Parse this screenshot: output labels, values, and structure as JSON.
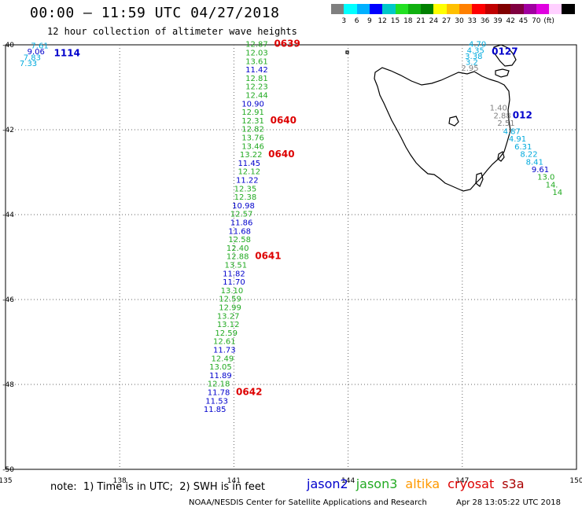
{
  "header": {
    "title": "00:00 – 11:59 UTC 04/27/2018",
    "subtitle": "12 hour collection of altimeter wave heights"
  },
  "colorbar": {
    "colors": [
      "#7f7f7f",
      "#00ffff",
      "#00b0ff",
      "#0000ff",
      "#00c8c8",
      "#22e022",
      "#10b010",
      "#008000",
      "#ffff00",
      "#ffc000",
      "#ff8000",
      "#ff0000",
      "#c00000",
      "#800000",
      "#800040",
      "#a000a0",
      "#e000e0",
      "#ffd0ff",
      "#000000"
    ],
    "ticks": [
      "3",
      "6",
      "9",
      "12",
      "15",
      "18",
      "21",
      "24",
      "27",
      "30",
      "33",
      "36",
      "39",
      "42",
      "45",
      "70",
      "(ft)"
    ]
  },
  "map": {
    "lon_range": [
      135,
      150
    ],
    "lat_range": [
      -50,
      -40
    ],
    "lon_ticks": [
      "135",
      "138",
      "141",
      "144",
      "147",
      "150"
    ],
    "lat_ticks": [
      "-40",
      "-42",
      "-44",
      "-46",
      "-48",
      "-50"
    ],
    "grid": "dotted"
  },
  "colors": {
    "jason2": "#0000cc",
    "jason3": "#22aa22",
    "altika": "#ff9900",
    "cryosat": "#dd0000",
    "s3a": "#aa0000",
    "grey": "#7f7f7f",
    "cyan": "#00aadd",
    "coast": "#000000"
  },
  "tracks": [
    {
      "label": "1114",
      "points": [
        {
          "lon": 135.9,
          "lat": -40.08,
          "v": "7.61",
          "c": "cyan"
        },
        {
          "lon": 135.8,
          "lat": -40.22,
          "v": "9.06",
          "c": "jason2"
        },
        {
          "lon": 135.7,
          "lat": -40.36,
          "v": "7.83",
          "c": "cyan"
        },
        {
          "lon": 135.6,
          "lat": -40.5,
          "v": "7.33",
          "c": "cyan"
        }
      ]
    },
    {
      "label": "0639",
      "points": [
        {
          "lon": 141.6,
          "lat": -40.05,
          "v": "12.87",
          "c": "jason3"
        },
        {
          "lon": 141.6,
          "lat": -40.25,
          "v": "12.03",
          "c": "jason3"
        },
        {
          "lon": 141.6,
          "lat": -40.45,
          "v": "13.61",
          "c": "jason3"
        },
        {
          "lon": 141.6,
          "lat": -40.65,
          "v": "11.42",
          "c": "jason2"
        },
        {
          "lon": 141.6,
          "lat": -40.85,
          "v": "12.81",
          "c": "jason3"
        },
        {
          "lon": 141.6,
          "lat": -41.05,
          "v": "12.23",
          "c": "jason3"
        },
        {
          "lon": 141.6,
          "lat": -41.25,
          "v": "12.44",
          "c": "jason3"
        },
        {
          "lon": 141.5,
          "lat": -41.45,
          "v": "10.90",
          "c": "jason2"
        },
        {
          "lon": 141.5,
          "lat": -41.65,
          "v": "12.91",
          "c": "jason3"
        }
      ]
    },
    {
      "label": "0640",
      "points": [
        {
          "lon": 141.5,
          "lat": -41.85,
          "v": "12.31",
          "c": "jason3"
        },
        {
          "lon": 141.5,
          "lat": -42.05,
          "v": "12.82",
          "c": "jason3"
        },
        {
          "lon": 141.5,
          "lat": -42.25,
          "v": "13.76",
          "c": "jason3"
        },
        {
          "lon": 141.5,
          "lat": -42.45,
          "v": "13.46",
          "c": "jason3"
        }
      ]
    },
    {
      "label": "0640",
      "points": [
        {
          "lon": 141.45,
          "lat": -42.65,
          "v": "13.22",
          "c": "jason3"
        },
        {
          "lon": 141.4,
          "lat": -42.85,
          "v": "11.45",
          "c": "jason2"
        },
        {
          "lon": 141.4,
          "lat": -43.05,
          "v": "12.12",
          "c": "jason3"
        },
        {
          "lon": 141.35,
          "lat": -43.25,
          "v": "11.22",
          "c": "jason2"
        },
        {
          "lon": 141.3,
          "lat": -43.45,
          "v": "12.35",
          "c": "jason3"
        },
        {
          "lon": 141.3,
          "lat": -43.65,
          "v": "12.38",
          "c": "jason3"
        },
        {
          "lon": 141.25,
          "lat": -43.85,
          "v": "10.98",
          "c": "jason2"
        },
        {
          "lon": 141.2,
          "lat": -44.05,
          "v": "12.57",
          "c": "jason3"
        },
        {
          "lon": 141.2,
          "lat": -44.25,
          "v": "11.86",
          "c": "jason2"
        },
        {
          "lon": 141.15,
          "lat": -44.45,
          "v": "11.68",
          "c": "jason2"
        },
        {
          "lon": 141.15,
          "lat": -44.65,
          "v": "12.58",
          "c": "jason3"
        },
        {
          "lon": 141.1,
          "lat": -44.85,
          "v": "12.40",
          "c": "jason3"
        }
      ]
    },
    {
      "label": "0641",
      "points": [
        {
          "lon": 141.1,
          "lat": -45.05,
          "v": "12.88",
          "c": "jason3"
        },
        {
          "lon": 141.05,
          "lat": -45.25,
          "v": "13.51",
          "c": "jason3"
        },
        {
          "lon": 141.0,
          "lat": -45.45,
          "v": "11.82",
          "c": "jason2"
        },
        {
          "lon": 141.0,
          "lat": -45.65,
          "v": "11.70",
          "c": "jason2"
        },
        {
          "lon": 140.95,
          "lat": -45.85,
          "v": "13.10",
          "c": "jason3"
        },
        {
          "lon": 140.9,
          "lat": -46.05,
          "v": "12.59",
          "c": "jason3"
        },
        {
          "lon": 140.9,
          "lat": -46.25,
          "v": "12.99",
          "c": "jason3"
        },
        {
          "lon": 140.85,
          "lat": -46.45,
          "v": "13.27",
          "c": "jason3"
        },
        {
          "lon": 140.85,
          "lat": -46.65,
          "v": "13.12",
          "c": "jason3"
        },
        {
          "lon": 140.8,
          "lat": -46.85,
          "v": "12.59",
          "c": "jason3"
        },
        {
          "lon": 140.75,
          "lat": -47.05,
          "v": "12.61",
          "c": "jason3"
        },
        {
          "lon": 140.75,
          "lat": -47.25,
          "v": "11.73",
          "c": "jason2"
        },
        {
          "lon": 140.7,
          "lat": -47.45,
          "v": "12.49",
          "c": "jason3"
        },
        {
          "lon": 140.65,
          "lat": -47.65,
          "v": "13.05",
          "c": "jason3"
        },
        {
          "lon": 140.65,
          "lat": -47.85,
          "v": "11.89",
          "c": "jason2"
        },
        {
          "lon": 140.6,
          "lat": -48.05,
          "v": "12.18",
          "c": "jason3"
        }
      ]
    },
    {
      "label": "0642",
      "points": [
        {
          "lon": 140.6,
          "lat": -48.25,
          "v": "11.78",
          "c": "jason2"
        },
        {
          "lon": 140.55,
          "lat": -48.45,
          "v": "11.53",
          "c": "jason2"
        },
        {
          "lon": 140.5,
          "lat": -48.65,
          "v": "11.85",
          "c": "jason2"
        }
      ]
    },
    {
      "label": "0127",
      "points": [
        {
          "lon": 147.4,
          "lat": -40.05,
          "v": "4.70",
          "c": "cyan"
        },
        {
          "lon": 147.35,
          "lat": -40.19,
          "v": "4.35",
          "c": "cyan"
        },
        {
          "lon": 147.3,
          "lat": -40.33,
          "v": "3.38",
          "c": "cyan"
        },
        {
          "lon": 147.25,
          "lat": -40.47,
          "v": "3.2",
          "c": "cyan"
        },
        {
          "lon": 147.2,
          "lat": -40.61,
          "v": "2.95",
          "c": "grey"
        }
      ]
    },
    {
      "label": "012",
      "points": [
        {
          "lon": 147.95,
          "lat": -41.55,
          "v": "1.40",
          "c": "grey"
        },
        {
          "lon": 148.05,
          "lat": -41.73,
          "v": "2.88",
          "c": "grey"
        },
        {
          "lon": 148.15,
          "lat": -41.91,
          "v": "2.51",
          "c": "grey"
        },
        {
          "lon": 148.3,
          "lat": -42.1,
          "v": "4.87",
          "c": "cyan"
        },
        {
          "lon": 148.45,
          "lat": -42.28,
          "v": "4.91",
          "c": "cyan"
        },
        {
          "lon": 148.6,
          "lat": -42.46,
          "v": "6.31",
          "c": "cyan"
        },
        {
          "lon": 148.75,
          "lat": -42.64,
          "v": "8.22",
          "c": "cyan"
        },
        {
          "lon": 148.9,
          "lat": -42.82,
          "v": "8.41",
          "c": "cyan"
        },
        {
          "lon": 149.05,
          "lat": -43.0,
          "v": "9.61",
          "c": "jason2"
        },
        {
          "lon": 149.2,
          "lat": -43.18,
          "v": "13.0",
          "c": "jason3"
        },
        {
          "lon": 149.35,
          "lat": -43.36,
          "v": "14.",
          "c": "jason3"
        },
        {
          "lon": 149.5,
          "lat": -43.54,
          "v": "14",
          "c": "jason3"
        }
      ]
    }
  ],
  "legend": {
    "note": "note:  1) Time is in UTC;  2) SWH is in feet",
    "items": [
      {
        "name": "jason2",
        "c": "jason2"
      },
      {
        "name": "jason3",
        "c": "jason3"
      },
      {
        "name": "altika",
        "c": "altika"
      },
      {
        "name": "cryosat",
        "c": "cryosat"
      },
      {
        "name": "s3a",
        "c": "s3a"
      }
    ]
  },
  "footer": {
    "credit": "NOAA/NESDIS Center for Satellite Applications and Research",
    "generated": "Apr 28 13:05:22 UTC 2018"
  }
}
